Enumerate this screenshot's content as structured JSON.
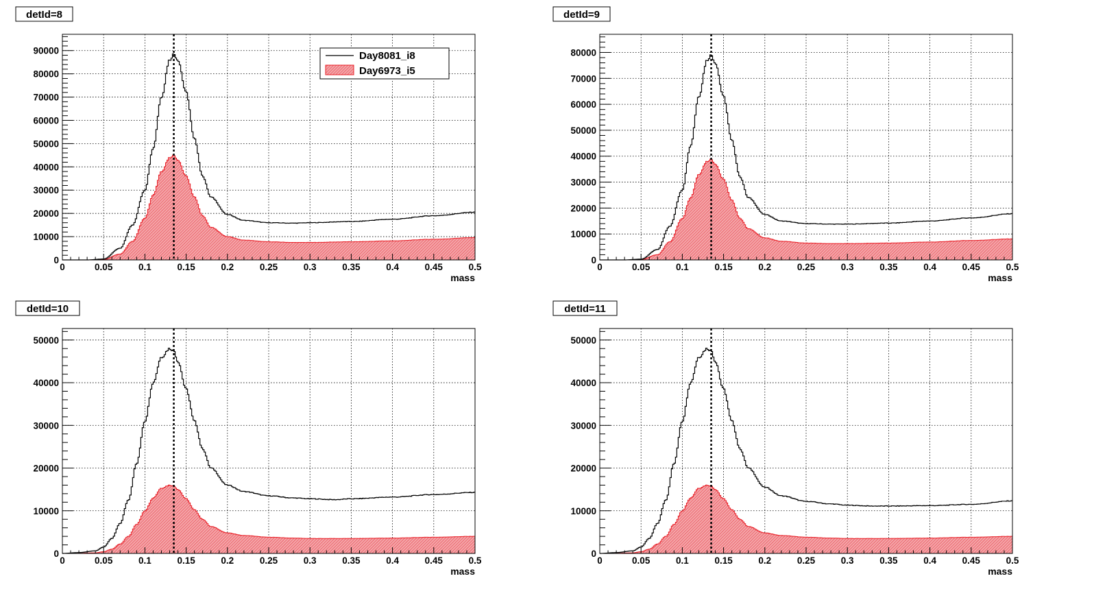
{
  "legend": {
    "series": [
      {
        "name": "Day8081_i8",
        "color": "#000000",
        "style": "line"
      },
      {
        "name": "Day6973_i5",
        "color": "#e8404a",
        "style": "filled-hatched"
      }
    ]
  },
  "colors": {
    "red_fill": "#ef9a9a",
    "red_line": "#e81c24",
    "black_line": "#000000"
  },
  "chart_data": [
    {
      "type": "line",
      "title": "detId=8",
      "xlabel": "mass",
      "ylabel": "",
      "xlim": [
        0,
        0.5
      ],
      "ylim": [
        0,
        97000
      ],
      "xticks": [
        "0",
        "0.05",
        "0.1",
        "0.15",
        "0.2",
        "0.25",
        "0.3",
        "0.35",
        "0.4",
        "0.45",
        "0.5"
      ],
      "yticks": [
        "0",
        "10000",
        "20000",
        "30000",
        "40000",
        "50000",
        "60000",
        "70000",
        "80000",
        "90000"
      ],
      "marker_x": 0.135,
      "grid": true,
      "legend_position": "top-right",
      "series": [
        {
          "name": "Day8081_i8",
          "x": [
            0,
            0.03,
            0.05,
            0.07,
            0.085,
            0.1,
            0.11,
            0.12,
            0.13,
            0.135,
            0.14,
            0.15,
            0.16,
            0.17,
            0.18,
            0.2,
            0.22,
            0.25,
            0.28,
            0.3,
            0.35,
            0.4,
            0.45,
            0.5
          ],
          "y": [
            0,
            0,
            400,
            5000,
            15000,
            30000,
            48000,
            70000,
            86000,
            88500,
            86000,
            72000,
            52000,
            36000,
            27000,
            19500,
            17000,
            16000,
            15800,
            16000,
            16500,
            17500,
            19000,
            20500
          ]
        },
        {
          "name": "Day6973_i5",
          "x": [
            0,
            0.03,
            0.05,
            0.07,
            0.085,
            0.1,
            0.11,
            0.12,
            0.13,
            0.135,
            0.14,
            0.15,
            0.16,
            0.17,
            0.18,
            0.2,
            0.22,
            0.25,
            0.28,
            0.3,
            0.35,
            0.4,
            0.45,
            0.5
          ],
          "y": [
            0,
            0,
            200,
            2500,
            8000,
            18000,
            28000,
            38000,
            44000,
            45000,
            43000,
            36000,
            27000,
            19000,
            14000,
            10000,
            8500,
            7800,
            7500,
            7500,
            7800,
            8200,
            8900,
            9600
          ]
        }
      ]
    },
    {
      "type": "line",
      "title": "detId=9",
      "xlabel": "mass",
      "ylabel": "",
      "xlim": [
        0,
        0.5
      ],
      "ylim": [
        0,
        87000
      ],
      "xticks": [
        "0",
        "0.05",
        "0.1",
        "0.15",
        "0.2",
        "0.25",
        "0.3",
        "0.35",
        "0.4",
        "0.45",
        "0.5"
      ],
      "yticks": [
        "0",
        "10000",
        "20000",
        "30000",
        "40000",
        "50000",
        "60000",
        "70000",
        "80000"
      ],
      "marker_x": 0.135,
      "grid": true,
      "series": [
        {
          "name": "Day8081_i8",
          "x": [
            0,
            0.03,
            0.05,
            0.07,
            0.085,
            0.1,
            0.11,
            0.12,
            0.13,
            0.135,
            0.14,
            0.15,
            0.16,
            0.17,
            0.18,
            0.2,
            0.22,
            0.25,
            0.28,
            0.3,
            0.35,
            0.4,
            0.45,
            0.5
          ],
          "y": [
            0,
            0,
            300,
            4000,
            13000,
            27000,
            44000,
            63000,
            77000,
            79000,
            76000,
            63000,
            46000,
            32000,
            24000,
            17500,
            15000,
            14000,
            13800,
            13800,
            14200,
            15000,
            16200,
            17800
          ]
        },
        {
          "name": "Day6973_i5",
          "x": [
            0,
            0.03,
            0.05,
            0.07,
            0.085,
            0.1,
            0.11,
            0.12,
            0.13,
            0.135,
            0.14,
            0.15,
            0.16,
            0.17,
            0.18,
            0.2,
            0.22,
            0.25,
            0.28,
            0.3,
            0.35,
            0.4,
            0.45,
            0.5
          ],
          "y": [
            0,
            0,
            150,
            2000,
            7000,
            16000,
            24000,
            33000,
            38000,
            38800,
            37000,
            31000,
            23000,
            16000,
            12000,
            8500,
            7200,
            6500,
            6300,
            6300,
            6500,
            6900,
            7500,
            8100
          ]
        }
      ]
    },
    {
      "type": "line",
      "title": "detId=10",
      "xlabel": "mass",
      "ylabel": "",
      "xlim": [
        0,
        0.5
      ],
      "ylim": [
        0,
        52700
      ],
      "xticks": [
        "0",
        "0.05",
        "0.1",
        "0.15",
        "0.2",
        "0.25",
        "0.3",
        "0.35",
        "0.4",
        "0.45",
        "0.5"
      ],
      "yticks": [
        "0",
        "10000",
        "20000",
        "30000",
        "40000",
        "50000"
      ],
      "marker_x": 0.135,
      "grid": true,
      "series": [
        {
          "name": "Day8081_i8",
          "x": [
            0,
            0.02,
            0.04,
            0.05,
            0.06,
            0.07,
            0.08,
            0.09,
            0.1,
            0.11,
            0.12,
            0.13,
            0.135,
            0.14,
            0.15,
            0.16,
            0.17,
            0.18,
            0.2,
            0.22,
            0.25,
            0.28,
            0.3,
            0.33,
            0.35,
            0.4,
            0.45,
            0.5
          ],
          "y": [
            0,
            200,
            600,
            1500,
            3500,
            7000,
            12500,
            21000,
            31000,
            40000,
            46000,
            48000,
            47500,
            45000,
            38500,
            31000,
            24500,
            20000,
            16000,
            14500,
            13500,
            13000,
            12800,
            12600,
            12800,
            13200,
            13800,
            14300
          ]
        },
        {
          "name": "Day6973_i5",
          "x": [
            0,
            0.02,
            0.04,
            0.05,
            0.06,
            0.07,
            0.08,
            0.09,
            0.1,
            0.11,
            0.12,
            0.13,
            0.135,
            0.14,
            0.15,
            0.16,
            0.17,
            0.18,
            0.2,
            0.22,
            0.25,
            0.28,
            0.3,
            0.33,
            0.35,
            0.4,
            0.45,
            0.5
          ],
          "y": [
            0,
            50,
            150,
            400,
            1000,
            2200,
            4000,
            6800,
            10000,
            13000,
            15300,
            16000,
            15800,
            15000,
            12800,
            10200,
            8000,
            6300,
            4800,
            4200,
            3800,
            3600,
            3500,
            3500,
            3500,
            3600,
            3800,
            4000
          ]
        }
      ]
    },
    {
      "type": "line",
      "title": "detId=11",
      "xlabel": "mass",
      "ylabel": "",
      "xlim": [
        0,
        0.5
      ],
      "ylim": [
        0,
        52700
      ],
      "xticks": [
        "0",
        "0.05",
        "0.1",
        "0.15",
        "0.2",
        "0.25",
        "0.3",
        "0.35",
        "0.4",
        "0.45",
        "0.5"
      ],
      "yticks": [
        "0",
        "10000",
        "20000",
        "30000",
        "40000",
        "50000"
      ],
      "marker_x": 0.135,
      "grid": true,
      "series": [
        {
          "name": "Day8081_i8",
          "x": [
            0,
            0.02,
            0.04,
            0.05,
            0.06,
            0.07,
            0.08,
            0.09,
            0.1,
            0.11,
            0.12,
            0.13,
            0.135,
            0.14,
            0.15,
            0.16,
            0.17,
            0.18,
            0.2,
            0.22,
            0.25,
            0.28,
            0.3,
            0.33,
            0.35,
            0.4,
            0.45,
            0.5
          ],
          "y": [
            0,
            200,
            600,
            1500,
            3500,
            7000,
            12500,
            21000,
            31000,
            40000,
            46000,
            48000,
            47500,
            45000,
            38500,
            31000,
            24500,
            20000,
            15500,
            13500,
            12200,
            11600,
            11300,
            11100,
            11100,
            11200,
            11500,
            12300
          ]
        },
        {
          "name": "Day6973_i5",
          "x": [
            0,
            0.02,
            0.04,
            0.05,
            0.06,
            0.07,
            0.08,
            0.09,
            0.1,
            0.11,
            0.12,
            0.13,
            0.135,
            0.14,
            0.15,
            0.16,
            0.17,
            0.18,
            0.2,
            0.22,
            0.25,
            0.28,
            0.3,
            0.33,
            0.35,
            0.4,
            0.45,
            0.5
          ],
          "y": [
            0,
            50,
            150,
            400,
            1000,
            2200,
            4000,
            6800,
            10000,
            13000,
            15300,
            16000,
            15800,
            15000,
            12800,
            10200,
            8000,
            6300,
            4800,
            4200,
            3800,
            3600,
            3500,
            3500,
            3500,
            3600,
            3800,
            4000
          ]
        }
      ]
    }
  ]
}
